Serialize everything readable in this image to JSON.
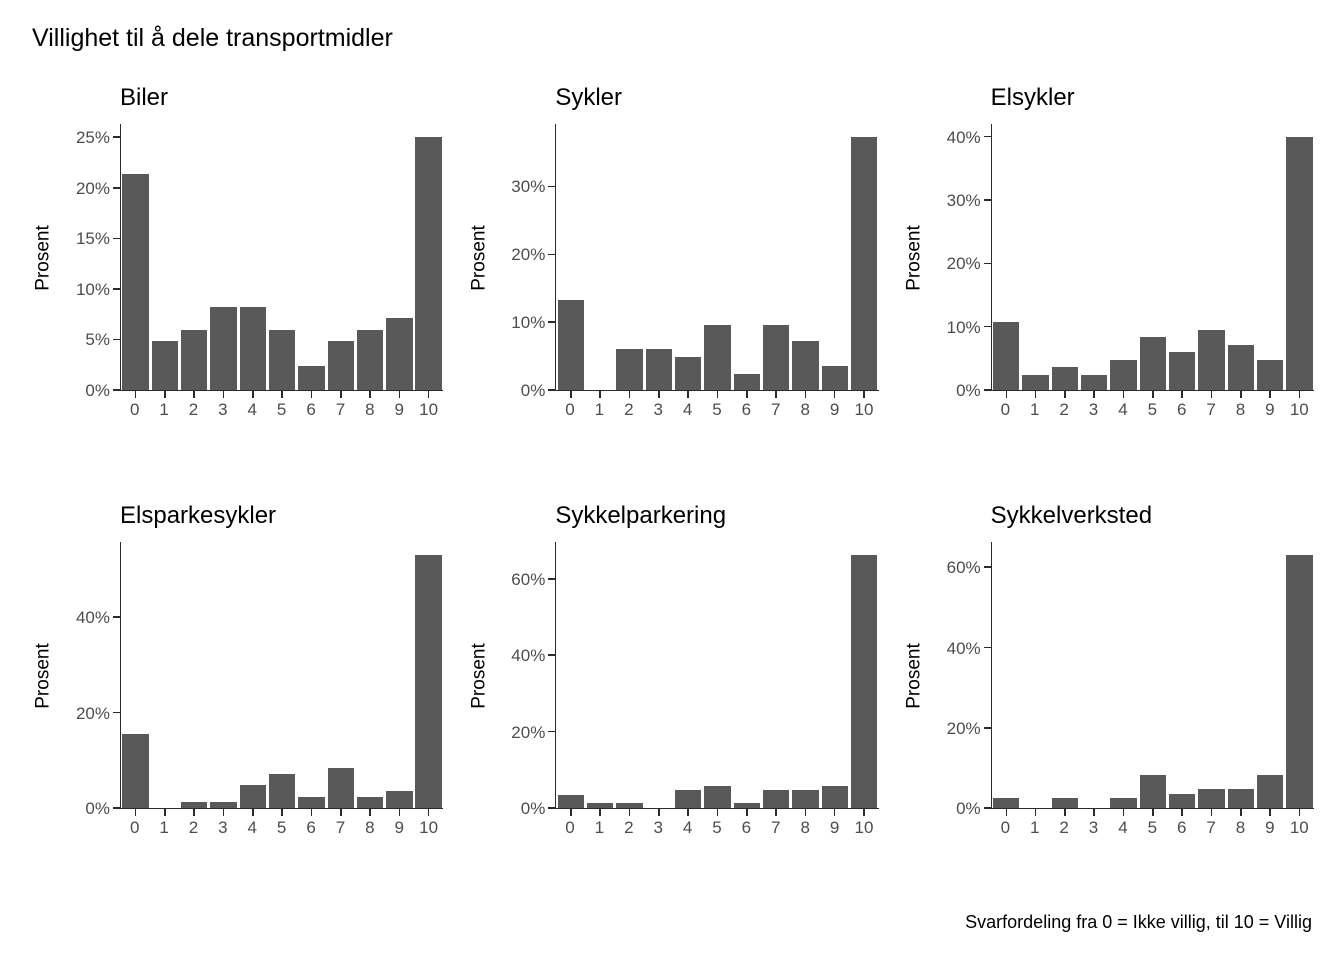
{
  "page": {
    "title": "Villighet til å dele transportmidler",
    "caption": "Svarfordeling fra 0 = Ikke villig, til 10 = Villig"
  },
  "colors": {
    "bar": "#595959",
    "axis_line": "#2b2b2b",
    "tick_text": "#4d4d4d",
    "title_text": "#000000",
    "background": "#ffffff"
  },
  "chart_data": [
    {
      "type": "bar",
      "title": "Biler",
      "xlabel": "",
      "ylabel": "Prosent",
      "grid": false,
      "legend": "none",
      "categories": [
        "0",
        "1",
        "2",
        "3",
        "4",
        "5",
        "6",
        "7",
        "8",
        "9",
        "10"
      ],
      "values": [
        21.4,
        4.8,
        5.9,
        8.2,
        8.2,
        5.9,
        2.4,
        4.8,
        5.9,
        7.1,
        25.0
      ],
      "yticks": [
        0,
        5,
        10,
        15,
        20,
        25
      ],
      "ytick_suffix": "%",
      "ymax": 26.3
    },
    {
      "type": "bar",
      "title": "Sykler",
      "xlabel": "",
      "ylabel": "Prosent",
      "grid": false,
      "legend": "none",
      "categories": [
        "0",
        "1",
        "2",
        "3",
        "4",
        "5",
        "6",
        "7",
        "8",
        "9",
        "10"
      ],
      "values": [
        13.3,
        0,
        6.0,
        6.0,
        4.8,
        9.6,
        2.4,
        9.6,
        7.2,
        3.6,
        37.3
      ],
      "yticks": [
        0,
        10,
        20,
        30
      ],
      "ytick_suffix": "%",
      "ymax": 39.2
    },
    {
      "type": "bar",
      "title": "Elsykler",
      "xlabel": "",
      "ylabel": "Prosent",
      "grid": false,
      "legend": "none",
      "categories": [
        "0",
        "1",
        "2",
        "3",
        "4",
        "5",
        "6",
        "7",
        "8",
        "9",
        "10"
      ],
      "values": [
        10.7,
        2.4,
        3.6,
        2.4,
        4.8,
        8.3,
        6.0,
        9.5,
        7.1,
        4.8,
        40.0
      ],
      "yticks": [
        0,
        10,
        20,
        30,
        40
      ],
      "ytick_suffix": "%",
      "ymax": 42.0
    },
    {
      "type": "bar",
      "title": "Elsparkesykler",
      "xlabel": "",
      "ylabel": "Prosent",
      "grid": false,
      "legend": "none",
      "categories": [
        "0",
        "1",
        "2",
        "3",
        "4",
        "5",
        "6",
        "7",
        "8",
        "9",
        "10"
      ],
      "values": [
        15.5,
        0,
        1.2,
        1.2,
        4.8,
        7.1,
        2.4,
        8.3,
        2.4,
        3.6,
        53.0
      ],
      "yticks": [
        0,
        20,
        40
      ],
      "ytick_suffix": "%",
      "ymax": 55.7
    },
    {
      "type": "bar",
      "title": "Sykkelparkering",
      "xlabel": "",
      "ylabel": "Prosent",
      "grid": false,
      "legend": "none",
      "categories": [
        "0",
        "1",
        "2",
        "3",
        "4",
        "5",
        "6",
        "7",
        "8",
        "9",
        "10"
      ],
      "values": [
        3.5,
        1.2,
        1.2,
        0,
        4.7,
        5.8,
        1.2,
        4.7,
        4.7,
        5.8,
        66.3
      ],
      "yticks": [
        0,
        20,
        40,
        60
      ],
      "ytick_suffix": "%",
      "ymax": 69.6
    },
    {
      "type": "bar",
      "title": "Sykkelverksted",
      "xlabel": "",
      "ylabel": "Prosent",
      "grid": false,
      "legend": "none",
      "categories": [
        "0",
        "1",
        "2",
        "3",
        "4",
        "5",
        "6",
        "7",
        "8",
        "9",
        "10"
      ],
      "values": [
        2.4,
        0,
        2.4,
        0,
        2.4,
        8.3,
        3.6,
        4.8,
        4.8,
        8.3,
        63.1
      ],
      "yticks": [
        0,
        20,
        40,
        60
      ],
      "ytick_suffix": "%",
      "ymax": 66.3
    }
  ]
}
